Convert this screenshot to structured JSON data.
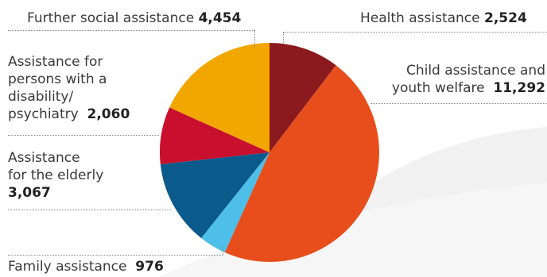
{
  "chart_data": {
    "type": "pie",
    "title": "",
    "slices": [
      {
        "key": "health",
        "label": "Health assistance",
        "value_text": "2,524",
        "value": 2524,
        "color": "#8b1a1e"
      },
      {
        "key": "child",
        "label": "Child assistance and youth welfare",
        "value_text": "11,292",
        "value": 11292,
        "color": "#e84e1b"
      },
      {
        "key": "family",
        "label": "Family assistance",
        "value_text": "976",
        "value": 976,
        "color": "#4dbfe8"
      },
      {
        "key": "elderly",
        "label": "Assistance for the elderly",
        "value_text": "3,067",
        "value": 3067,
        "color": "#0b5a8c"
      },
      {
        "key": "disability",
        "label": "Assistance for persons with a disability/ psychiatry",
        "value_text": "2,060",
        "value": 2060,
        "color": "#c8102e"
      },
      {
        "key": "further",
        "label": "Further social assistance",
        "value_text": "4,454",
        "value": 4454,
        "color": "#f2a600"
      }
    ]
  },
  "labels": {
    "further": {
      "l1": "Further social assistance",
      "val": "4,454"
    },
    "health": {
      "l1": "Health assistance",
      "val": "2,524"
    },
    "child": {
      "l1": "Child assistance and",
      "l2": "youth welfare",
      "val": "11,292"
    },
    "disability": {
      "l1": "Assistance for",
      "l2": "persons with a",
      "l3": "disability/",
      "l4": "psychiatry",
      "val": "2,060"
    },
    "elderly": {
      "l1": "Assistance",
      "l2": "for the elderly",
      "val": "3,067"
    },
    "family": {
      "l1": "Family assistance",
      "val": "976"
    }
  }
}
